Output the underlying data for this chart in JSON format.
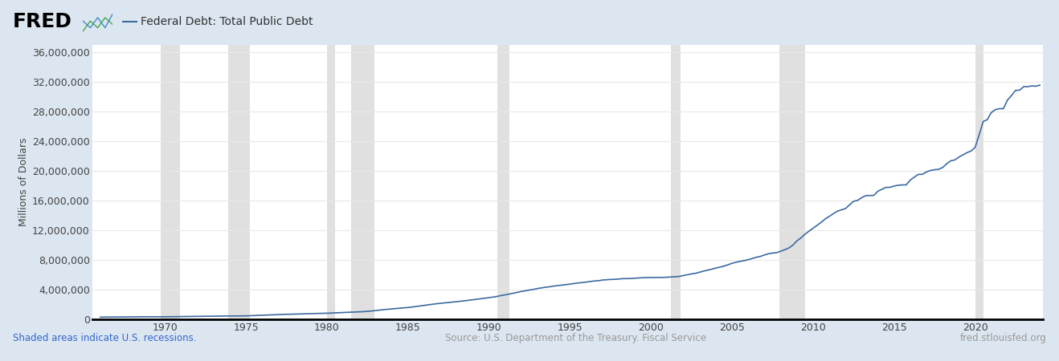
{
  "title": "Federal Debt: Total Public Debt",
  "ylabel": "Millions of Dollars",
  "line_color": "#3b6aa0",
  "line_width": 1.2,
  "background_color": "#dce6f0",
  "plot_bg_color": "#ffffff",
  "footer_text_left": "Shaded areas indicate U.S. recessions.",
  "footer_text_center": "Source: U.S. Department of the Treasury. Fiscal Service",
  "footer_text_right": "fred.stlouisfed.org",
  "footer_color_left": "#3366cc",
  "footer_color_other": "#999999",
  "ylim": [
    0,
    37000000
  ],
  "yticks": [
    0,
    4000000,
    8000000,
    12000000,
    16000000,
    20000000,
    24000000,
    28000000,
    32000000,
    36000000
  ],
  "xlim_start": 1965.5,
  "xlim_end": 2024.2,
  "xticks": [
    1970,
    1975,
    1980,
    1985,
    1990,
    1995,
    2000,
    2005,
    2010,
    2015,
    2020
  ],
  "recession_bands": [
    [
      1969.75,
      1970.917
    ],
    [
      1973.917,
      1975.25
    ],
    [
      1980.0,
      1980.5
    ],
    [
      1981.5,
      1982.917
    ],
    [
      1990.5,
      1991.25
    ],
    [
      2001.25,
      2001.833
    ],
    [
      2007.917,
      2009.5
    ],
    [
      2020.0,
      2020.5
    ]
  ],
  "recession_color": "#e0e0e0",
  "grid_color": "#e8e8e8",
  "data_x": [
    1966.0,
    1966.25,
    1966.5,
    1966.75,
    1967.0,
    1967.25,
    1967.5,
    1967.75,
    1968.0,
    1968.25,
    1968.5,
    1968.75,
    1969.0,
    1969.25,
    1969.5,
    1969.75,
    1970.0,
    1970.25,
    1970.5,
    1970.75,
    1971.0,
    1971.25,
    1971.5,
    1971.75,
    1972.0,
    1972.25,
    1972.5,
    1972.75,
    1973.0,
    1973.25,
    1973.5,
    1973.75,
    1974.0,
    1974.25,
    1974.5,
    1974.75,
    1975.0,
    1975.25,
    1975.5,
    1975.75,
    1976.0,
    1976.25,
    1976.5,
    1976.75,
    1977.0,
    1977.25,
    1977.5,
    1977.75,
    1978.0,
    1978.25,
    1978.5,
    1978.75,
    1979.0,
    1979.25,
    1979.5,
    1979.75,
    1980.0,
    1980.25,
    1980.5,
    1980.75,
    1981.0,
    1981.25,
    1981.5,
    1981.75,
    1982.0,
    1982.25,
    1982.5,
    1982.75,
    1983.0,
    1983.25,
    1983.5,
    1983.75,
    1984.0,
    1984.25,
    1984.5,
    1984.75,
    1985.0,
    1985.25,
    1985.5,
    1985.75,
    1986.0,
    1986.25,
    1986.5,
    1986.75,
    1987.0,
    1987.25,
    1987.5,
    1987.75,
    1988.0,
    1988.25,
    1988.5,
    1988.75,
    1989.0,
    1989.25,
    1989.5,
    1989.75,
    1990.0,
    1990.25,
    1990.5,
    1990.75,
    1991.0,
    1991.25,
    1991.5,
    1991.75,
    1992.0,
    1992.25,
    1992.5,
    1992.75,
    1993.0,
    1993.25,
    1993.5,
    1993.75,
    1994.0,
    1994.25,
    1994.5,
    1994.75,
    1995.0,
    1995.25,
    1995.5,
    1995.75,
    1996.0,
    1996.25,
    1996.5,
    1996.75,
    1997.0,
    1997.25,
    1997.5,
    1997.75,
    1998.0,
    1998.25,
    1998.5,
    1998.75,
    1999.0,
    1999.25,
    1999.5,
    1999.75,
    2000.0,
    2000.25,
    2000.5,
    2000.75,
    2001.0,
    2001.25,
    2001.5,
    2001.75,
    2002.0,
    2002.25,
    2002.5,
    2002.75,
    2003.0,
    2003.25,
    2003.5,
    2003.75,
    2004.0,
    2004.25,
    2004.5,
    2004.75,
    2005.0,
    2005.25,
    2005.5,
    2005.75,
    2006.0,
    2006.25,
    2006.5,
    2006.75,
    2007.0,
    2007.25,
    2007.5,
    2007.75,
    2008.0,
    2008.25,
    2008.5,
    2008.75,
    2009.0,
    2009.25,
    2009.5,
    2009.75,
    2010.0,
    2010.25,
    2010.5,
    2010.75,
    2011.0,
    2011.25,
    2011.5,
    2011.75,
    2012.0,
    2012.25,
    2012.5,
    2012.75,
    2013.0,
    2013.25,
    2013.5,
    2013.75,
    2014.0,
    2014.25,
    2014.5,
    2014.75,
    2015.0,
    2015.25,
    2015.5,
    2015.75,
    2016.0,
    2016.25,
    2016.5,
    2016.75,
    2017.0,
    2017.25,
    2017.5,
    2017.75,
    2018.0,
    2018.25,
    2018.5,
    2018.75,
    2019.0,
    2019.25,
    2019.5,
    2019.75,
    2020.0,
    2020.25,
    2020.5,
    2020.75,
    2021.0,
    2021.25,
    2021.5,
    2021.75,
    2022.0,
    2022.25,
    2022.5,
    2022.75,
    2023.0,
    2023.25,
    2023.5,
    2023.75,
    2024.0
  ],
  "data_y": [
    319000,
    321000,
    325000,
    328000,
    330000,
    334000,
    340000,
    343000,
    347000,
    355000,
    363000,
    369000,
    365000,
    366000,
    367000,
    365000,
    370000,
    374000,
    381000,
    386000,
    390000,
    398000,
    408000,
    409000,
    420000,
    427000,
    435000,
    437000,
    450000,
    456000,
    462000,
    468000,
    470000,
    476000,
    482000,
    486000,
    490000,
    510000,
    530000,
    542000,
    570000,
    590000,
    615000,
    630000,
    660000,
    685000,
    700000,
    709000,
    725000,
    742000,
    758000,
    780000,
    795000,
    808000,
    822000,
    830000,
    845000,
    868000,
    895000,
    910000,
    940000,
    965000,
    985000,
    998000,
    1020000,
    1060000,
    1100000,
    1142000,
    1200000,
    1270000,
    1330000,
    1377000,
    1430000,
    1480000,
    1525000,
    1572000,
    1620000,
    1680000,
    1755000,
    1823000,
    1900000,
    1970000,
    2050000,
    2125000,
    2180000,
    2240000,
    2295000,
    2346000,
    2400000,
    2460000,
    2525000,
    2602000,
    2660000,
    2730000,
    2800000,
    2868000,
    2950000,
    3020000,
    3115000,
    3233000,
    3320000,
    3430000,
    3545000,
    3665000,
    3780000,
    3870000,
    3975000,
    4065000,
    4180000,
    4270000,
    4355000,
    4411000,
    4510000,
    4575000,
    4640000,
    4693000,
    4770000,
    4850000,
    4930000,
    4974000,
    5050000,
    5130000,
    5195000,
    5225000,
    5320000,
    5360000,
    5400000,
    5413000,
    5465000,
    5505000,
    5520000,
    5526000,
    5565000,
    5600000,
    5640000,
    5656000,
    5665000,
    5675000,
    5674000,
    5674000,
    5700000,
    5740000,
    5770000,
    5807000,
    5930000,
    6040000,
    6150000,
    6228000,
    6380000,
    6530000,
    6660000,
    6783000,
    6940000,
    7060000,
    7200000,
    7379000,
    7580000,
    7720000,
    7840000,
    7933000,
    8070000,
    8230000,
    8390000,
    8507000,
    8700000,
    8870000,
    8960000,
    9008000,
    9200000,
    9400000,
    9640000,
    10025000,
    10600000,
    11000000,
    11500000,
    11910000,
    12300000,
    12700000,
    13100000,
    13562000,
    13900000,
    14270000,
    14600000,
    14790000,
    14960000,
    15450000,
    15940000,
    16066000,
    16430000,
    16700000,
    16720000,
    16738000,
    17300000,
    17560000,
    17820000,
    17824000,
    18000000,
    18100000,
    18150000,
    18151000,
    18800000,
    19200000,
    19570000,
    19573000,
    19900000,
    20100000,
    20200000,
    20245000,
    20500000,
    21000000,
    21400000,
    21516000,
    21900000,
    22200000,
    22500000,
    22719000,
    23200000,
    24900000,
    26700000,
    26945000,
    27900000,
    28300000,
    28430000,
    28429000,
    29600000,
    30200000,
    30900000,
    30928000,
    31400000,
    31400000,
    31500000,
    31459000,
    31600000
  ]
}
